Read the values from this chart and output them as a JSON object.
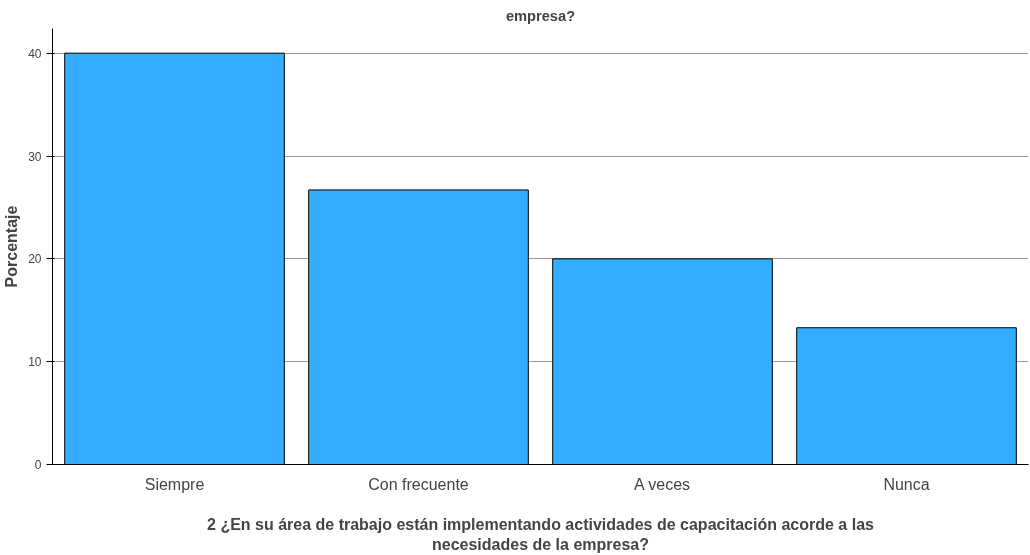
{
  "chart_data": {
    "type": "bar",
    "title": "empresa?",
    "xlabel": "2 ¿En su área de trabajo están implementando actividades de capacitación acorde a las\nnecesidades de la empresa?",
    "ylabel": "Porcentaje",
    "categories": [
      "Siempre",
      "Con frecuente",
      "A veces",
      "Nunca"
    ],
    "values": [
      40,
      26.7,
      20,
      13.3
    ],
    "color": "#33adff",
    "ylim": [
      0,
      42.4
    ],
    "yticks": [
      0,
      10,
      20,
      30,
      40
    ],
    "grid": "y"
  }
}
